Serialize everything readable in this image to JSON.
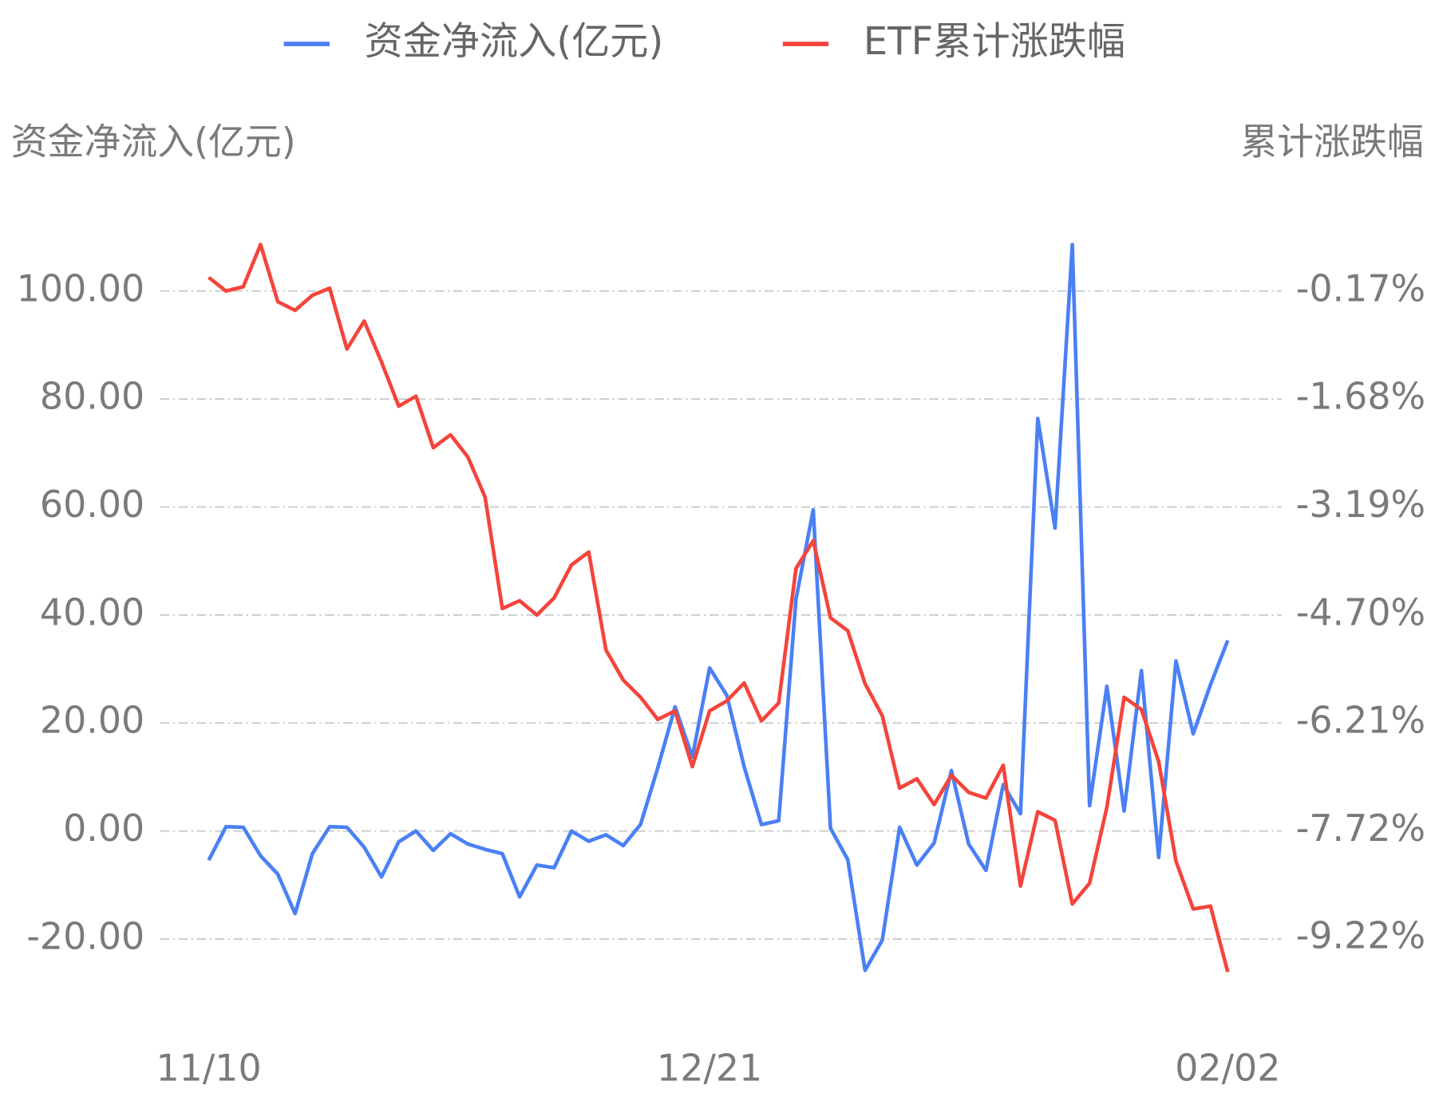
{
  "chart_data": {
    "type": "line",
    "categories": [
      "11/10",
      null,
      null,
      null,
      null,
      null,
      null,
      null,
      null,
      null,
      null,
      null,
      null,
      null,
      null,
      null,
      null,
      null,
      null,
      null,
      null,
      null,
      null,
      null,
      null,
      null,
      null,
      null,
      null,
      "12/21",
      null,
      null,
      null,
      null,
      null,
      null,
      null,
      null,
      null,
      null,
      null,
      null,
      null,
      null,
      null,
      null,
      null,
      null,
      null,
      null,
      null,
      null,
      null,
      null,
      null,
      null,
      null,
      null,
      null,
      "02/02"
    ],
    "y_label": "资金净流入(亿元)",
    "y2_label": "累计涨跌幅",
    "series": [
      {
        "name": "资金净流入(亿元)",
        "color": "#4a80f5",
        "values": [
          -5.4,
          0.8,
          0.7,
          -4.6,
          -8,
          -15.3,
          -4.2,
          0.8,
          0.7,
          -3,
          -8.5,
          -2,
          0,
          -3.6,
          -0.5,
          -2.4,
          -3.4,
          -4.2,
          -12.2,
          -6.3,
          -6.8,
          0,
          -1.9,
          -0.7,
          -2.7,
          1.2,
          11.7,
          23,
          13.7,
          30.2,
          25.1,
          11.9,
          1.2,
          1.9,
          42.9,
          59.5,
          0.5,
          -5.3,
          -25.8,
          -20.2,
          0.7,
          -6.3,
          -2.2,
          11.2,
          -2.4,
          -7.3,
          8.6,
          3.2,
          76.4,
          56.1,
          108.6,
          4.7,
          26.8,
          3.7,
          29.7,
          -4.9,
          31.5,
          18,
          27.1,
          35.3
        ]
      },
      {
        "name": "ETF累计涨跌幅",
        "color": "#f5443b",
        "axis": "y2",
        "values": [
          0.02,
          -0.17,
          -0.11,
          0.48,
          -0.32,
          -0.44,
          -0.23,
          -0.13,
          -0.98,
          -0.59,
          -1.16,
          -1.78,
          -1.64,
          -2.36,
          -2.18,
          -2.49,
          -3.05,
          -4.61,
          -4.5,
          -4.7,
          -4.46,
          -4,
          -3.82,
          -5.19,
          -5.61,
          -5.85,
          -6.16,
          -6.04,
          -6.82,
          -6.04,
          -5.9,
          -5.65,
          -6.18,
          -5.93,
          -4.05,
          -3.66,
          -4.74,
          -4.92,
          -5.66,
          -6.11,
          -7.12,
          -6.99,
          -7.35,
          -6.94,
          -7.18,
          -7.26,
          -6.8,
          -8.49,
          -7.45,
          -7.57,
          -8.74,
          -8.45,
          -7.39,
          -5.85,
          -6.02,
          -6.75,
          -8.14,
          -8.81,
          -8.77,
          -9.69
        ]
      }
    ],
    "ylim": [
      -30,
      115
    ],
    "yticks": [
      {
        "value": -20,
        "label": "-20.00"
      },
      {
        "value": 0,
        "label": "0.00"
      },
      {
        "value": 20,
        "label": "20.00"
      },
      {
        "value": 40,
        "label": "40.00"
      },
      {
        "value": 60,
        "label": "60.00"
      },
      {
        "value": 80,
        "label": "80.00"
      },
      {
        "value": 100,
        "label": "100.00"
      }
    ],
    "y2lim": [
      -9.985,
      0.9625
    ],
    "y2ticks": [
      {
        "value": -9.22,
        "label": "-9.22%"
      },
      {
        "value": -7.72,
        "label": "-7.72%"
      },
      {
        "value": -6.21,
        "label": "-6.21%"
      },
      {
        "value": -4.7,
        "label": "-4.70%"
      },
      {
        "value": -3.19,
        "label": "-3.19%"
      },
      {
        "value": -1.68,
        "label": "-1.68%"
      },
      {
        "value": -0.17,
        "label": "-0.17%"
      }
    ],
    "grid": true,
    "legend": "top"
  }
}
